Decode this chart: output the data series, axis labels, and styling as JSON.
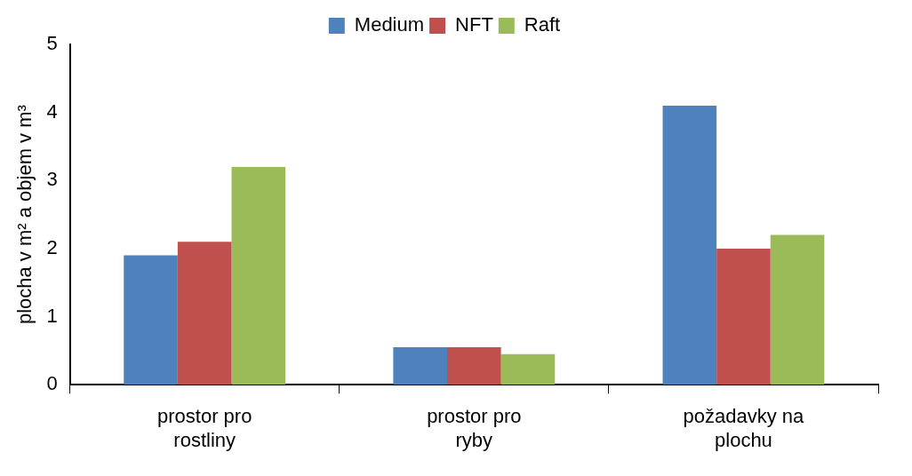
{
  "chart_data": {
    "type": "bar",
    "ylabel": "plocha v m² a objem v m³",
    "categories": [
      "prostor pro rostliny",
      "prostor pro ryby",
      "požadavky na plochu"
    ],
    "series": [
      {
        "name": "Medium",
        "color": "#4f81bd",
        "values": [
          1.9,
          0.55,
          4.1
        ]
      },
      {
        "name": "NFT",
        "color": "#c0504d",
        "values": [
          2.1,
          0.55,
          2.0
        ]
      },
      {
        "name": "Raft",
        "color": "#9bbb59",
        "values": [
          3.2,
          0.45,
          2.2
        ]
      }
    ],
    "ylim": [
      0,
      5
    ],
    "yticks": [
      0,
      1,
      2,
      3,
      4,
      5
    ],
    "grid": false,
    "legend": "top"
  }
}
